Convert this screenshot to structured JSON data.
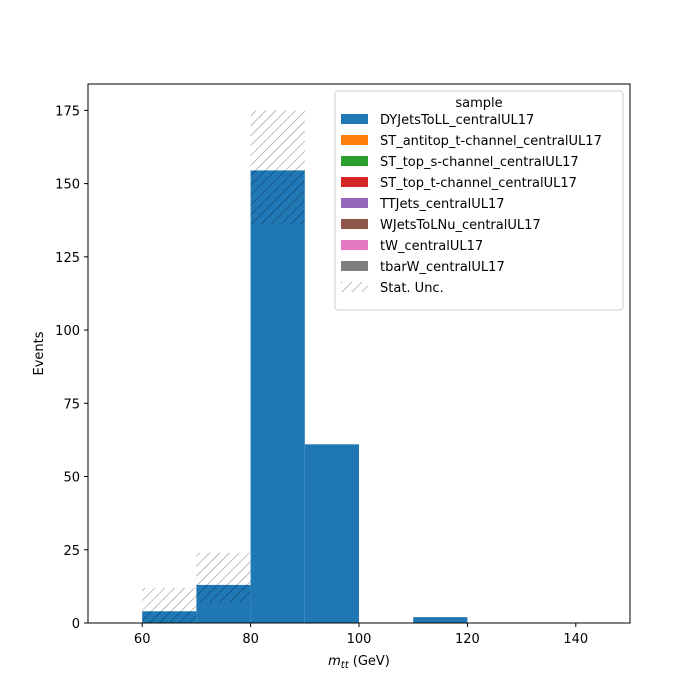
{
  "chart_data": {
    "type": "bar",
    "stacked": true,
    "xlabel_main": "m",
    "xlabel_sub": "tt",
    "xlabel_unit": " (GeV)",
    "ylabel": "Events",
    "xlim": [
      50,
      150
    ],
    "ylim": [
      0,
      184
    ],
    "xticks": [
      60,
      80,
      100,
      120,
      140
    ],
    "yticks": [
      0,
      25,
      50,
      75,
      100,
      125,
      150,
      175
    ],
    "bin_edges": [
      60,
      70,
      80,
      90,
      100,
      110,
      120,
      130,
      140,
      150
    ],
    "series": [
      {
        "name": "DYJetsToLL_centralUL17",
        "color": "#1f77b4",
        "values": [
          4,
          13,
          154.5,
          61,
          0,
          2,
          0,
          0,
          0
        ]
      },
      {
        "name": "ST_antitop_t-channel_centralUL17",
        "color": "#ff7f0e",
        "values": [
          0,
          0,
          0,
          0,
          0,
          0,
          0,
          0,
          0
        ]
      },
      {
        "name": "ST_top_s-channel_centralUL17",
        "color": "#2ca02c",
        "values": [
          0,
          0,
          0,
          0,
          0,
          0,
          0,
          0,
          0
        ]
      },
      {
        "name": "ST_top_t-channel_centralUL17",
        "color": "#d62728",
        "values": [
          0,
          0,
          0,
          0,
          0,
          0,
          0,
          0,
          0
        ]
      },
      {
        "name": "TTJets_centralUL17",
        "color": "#9467bd",
        "values": [
          0,
          0,
          0,
          0,
          0,
          0,
          0,
          0,
          0
        ]
      },
      {
        "name": "WJetsToLNu_centralUL17",
        "color": "#8c564b",
        "values": [
          0,
          0,
          0,
          0,
          0,
          0,
          0,
          0,
          0
        ]
      },
      {
        "name": "tW_centralUL17",
        "color": "#e377c2",
        "values": [
          0,
          0,
          0,
          0,
          0,
          0,
          0,
          0,
          0
        ]
      },
      {
        "name": "tbarW_centralUL17",
        "color": "#7f7f7f",
        "values": [
          0,
          0,
          0,
          0,
          0,
          0,
          0,
          0,
          0
        ]
      }
    ],
    "uncertainty": {
      "name": "Stat. Unc.",
      "bins": [
        {
          "low": 60,
          "high": 70,
          "down": 0,
          "up": 12
        },
        {
          "low": 70,
          "high": 80,
          "down": 7,
          "up": 24
        },
        {
          "low": 80,
          "high": 90,
          "down": 136,
          "up": 175
        }
      ]
    },
    "legend": {
      "title": "sample",
      "placement": "top-right"
    }
  }
}
